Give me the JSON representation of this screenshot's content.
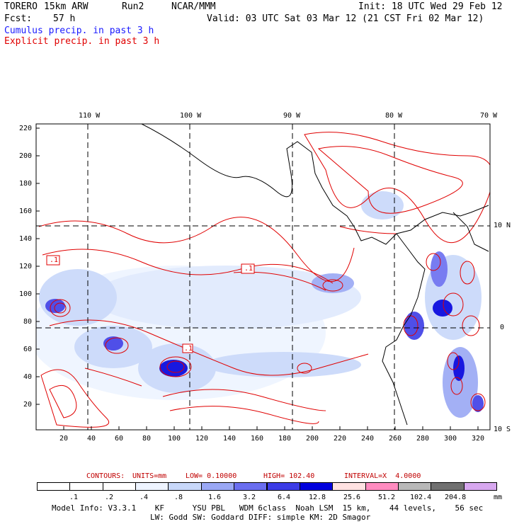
{
  "header": {
    "model": "TORERO",
    "resolution": "15km ARW",
    "run": "Run2",
    "org": "NCAR/MMM",
    "init": "Init: 18 UTC Wed 29 Feb 12",
    "fcst_label": "Fcst:",
    "fcst_value": "57 h",
    "valid": "Valid: 03 UTC Sat 03 Mar 12 (21 CST Fri 02 Mar 12)",
    "legend_cumulus": "Cumulus precip. in past 3 h",
    "legend_explicit": "Explicit precip. in past 3 h"
  },
  "colors": {
    "cumulus": "#1a1aff",
    "explicit": "#e00000",
    "coast": "#000000"
  },
  "axes": {
    "lon_labels": [
      "110 W",
      "100 W",
      "90 W",
      "80 W",
      "70 W"
    ],
    "lat_labels": [
      "10 N",
      "0",
      "10 S"
    ],
    "y_ticks": [
      "220",
      "200",
      "180",
      "160",
      "140",
      "120",
      "100",
      "80",
      "60",
      "40",
      "20"
    ],
    "x_ticks": [
      "20",
      "40",
      "60",
      "80",
      "100",
      "120",
      "140",
      "160",
      "180",
      "200",
      "220",
      "240",
      "260",
      "280",
      "300",
      "320"
    ]
  },
  "map_labels": {
    "label_a": ".1",
    "label_b": ".1",
    "label_c": ".1"
  },
  "contours": {
    "title": "CONTOURS:",
    "units": "UNITS=mm",
    "low": "LOW= 0.10000",
    "high": "HIGH= 102.40",
    "interval": "INTERVAL=X  4.0000"
  },
  "colorbar": {
    "labels": [
      ".1",
      ".2",
      ".4",
      ".8",
      "1.6",
      "3.2",
      "6.4",
      "12.8",
      "25.6",
      "51.2",
      "102.4",
      "204.8"
    ],
    "unit": "mm",
    "colors": [
      "#ffffff",
      "#ffffff",
      "#ffffff",
      "#eef4ff",
      "#c8d8fa",
      "#9aa8f5",
      "#6a6ef0",
      "#3c3ce6",
      "#0000dd",
      "#ffe2e2",
      "#ff8cc0",
      "#b8b8b8",
      "#707070",
      "#d8a8f0"
    ]
  },
  "model_info": {
    "line1": "Model Info: V3.3.1    KF      YSU PBL   WDM 6class  Noah LSM  15 km,    44 levels,    56 sec",
    "line2": "LW: Godd SW: Goddard DIFF: simple KM: 2D Smagor"
  }
}
